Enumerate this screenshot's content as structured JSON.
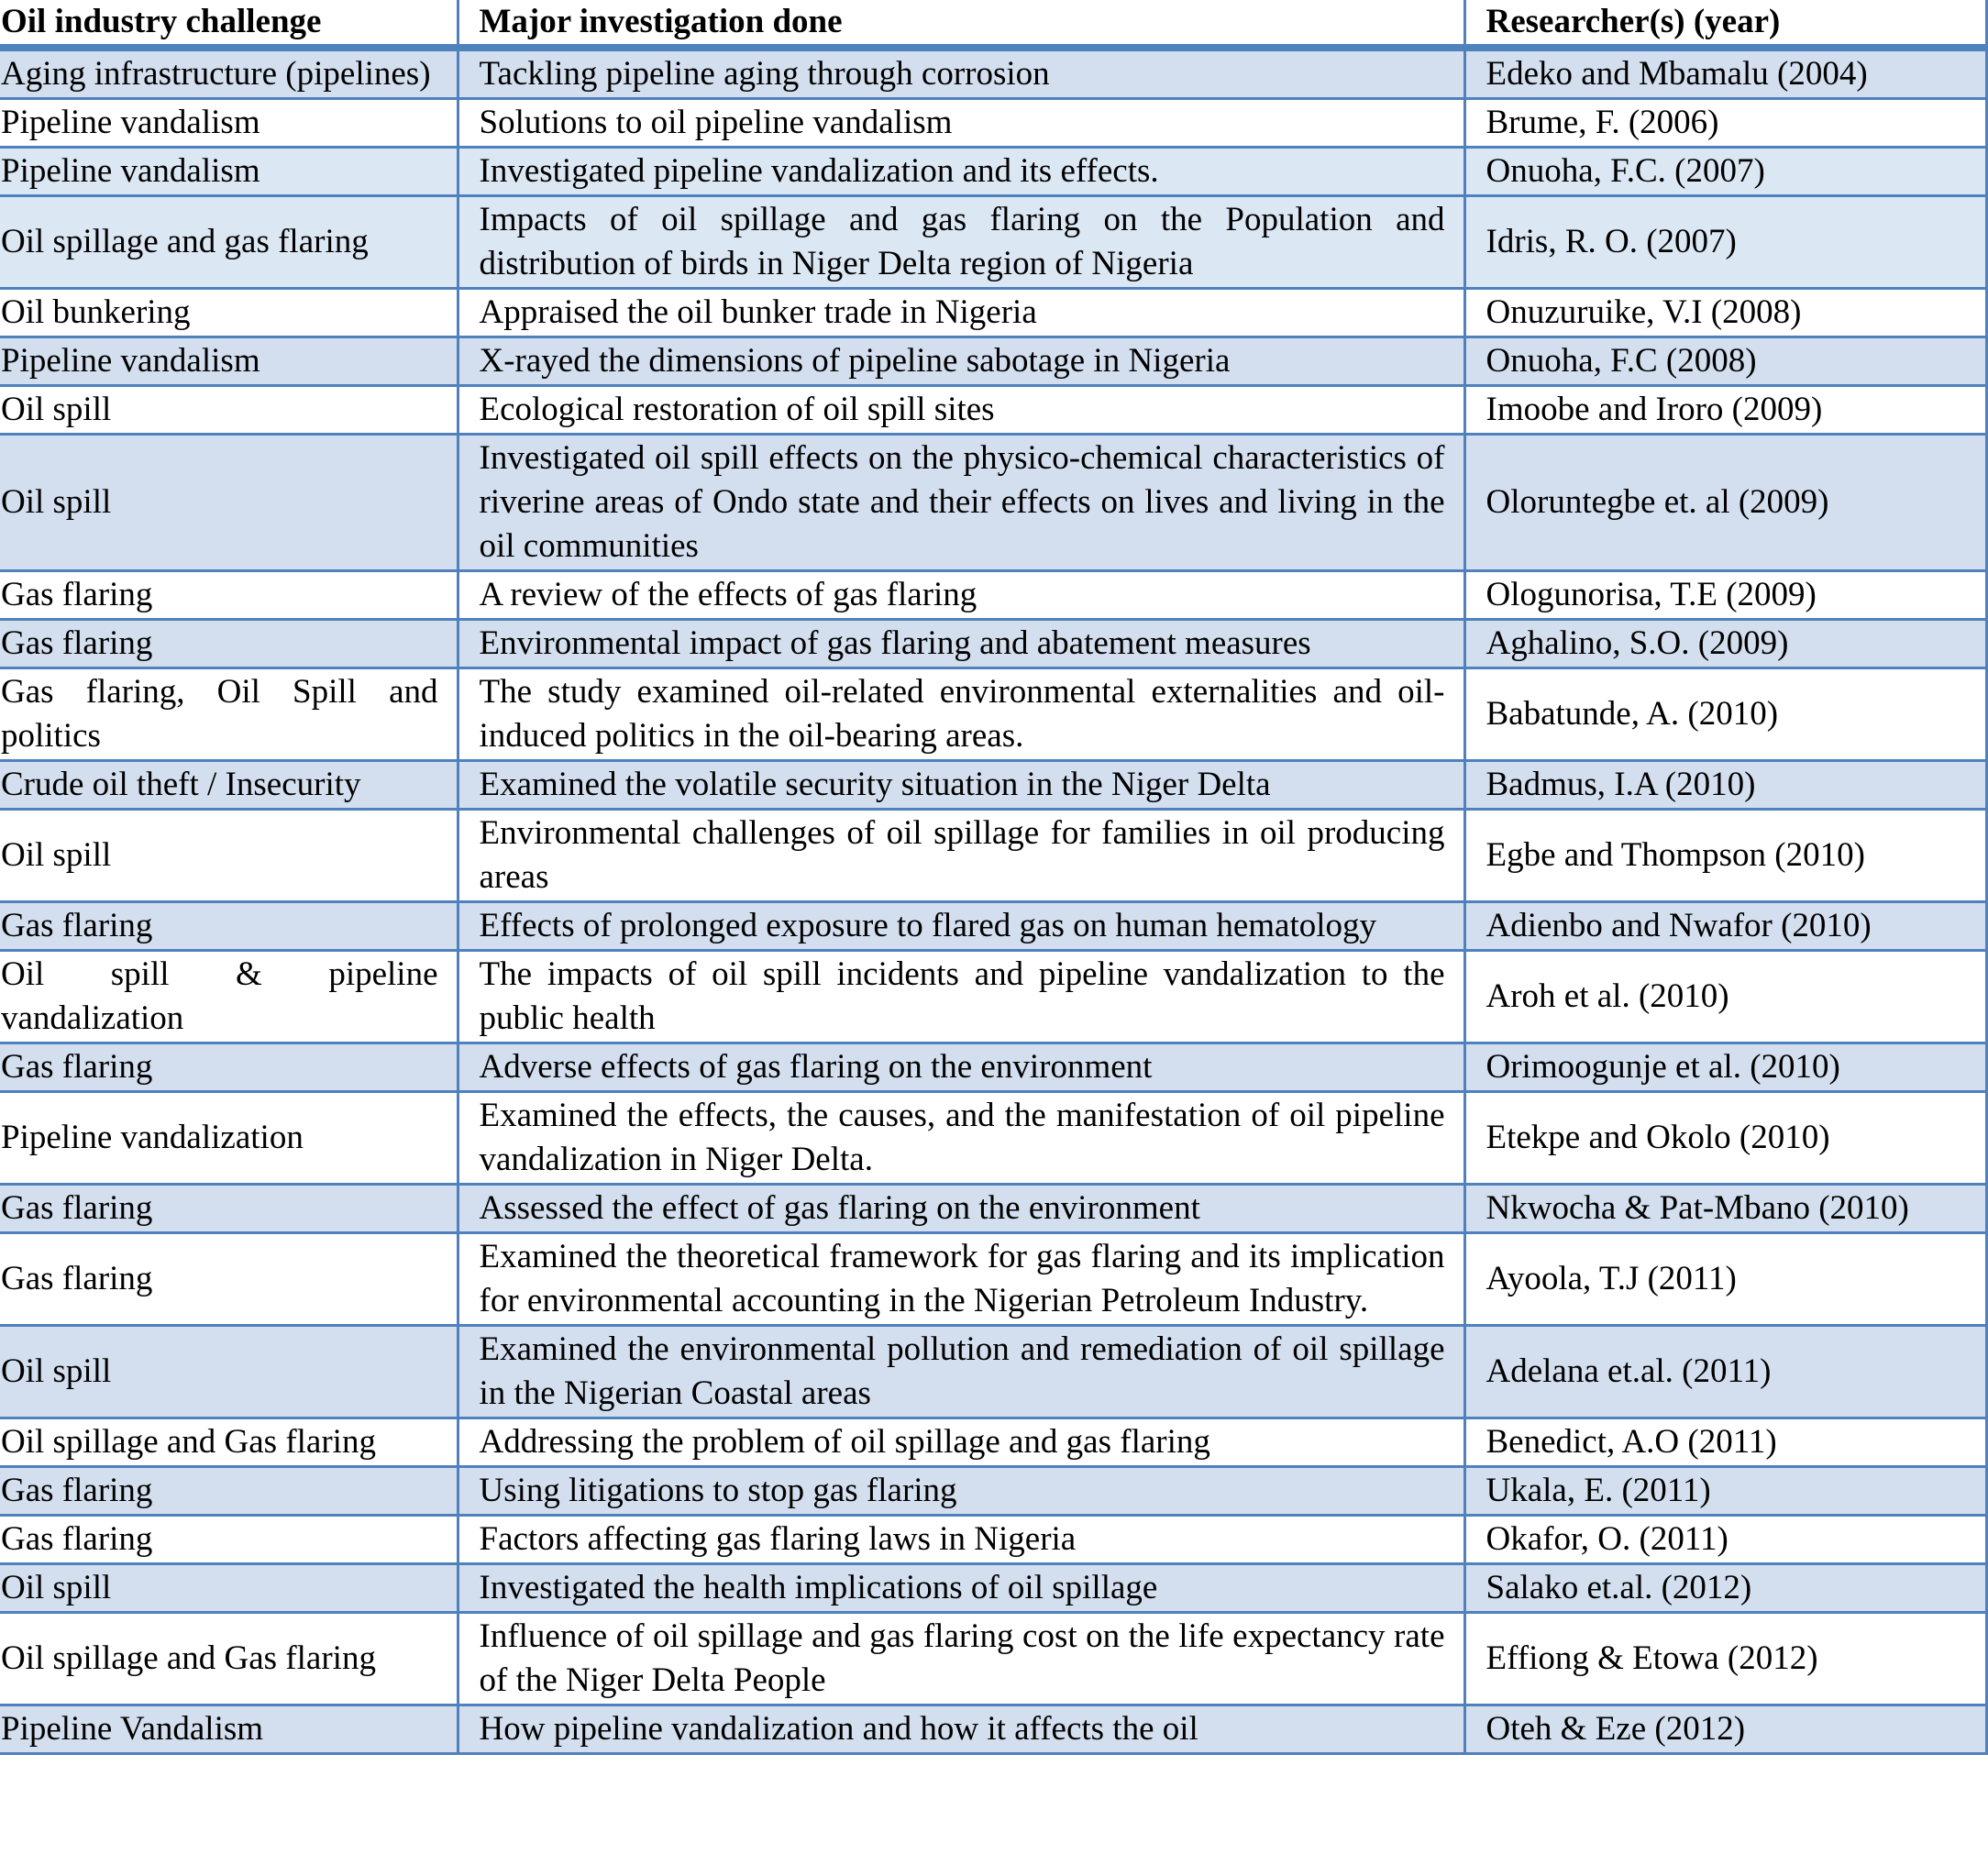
{
  "header": {
    "challenge": "Oil industry challenge",
    "investigation": "Major investigation done",
    "researcher": "Researcher(s) (year)"
  },
  "border_color": "#4f81bd",
  "rows": [
    {
      "c": "Aging infrastructure (pipelines)",
      "i": "Tackling pipeline aging through corrosion",
      "r": "Edeko and Mbamalu (2004)",
      "fill": "shade"
    },
    {
      "c": "Pipeline vandalism",
      "i": "Solutions to oil pipeline vandalism",
      "r": "Brume, F. (2006)",
      "fill": "white"
    },
    {
      "c": "Pipeline vandalism",
      "i": "Investigated pipeline vandalization and its effects.",
      "r": "Onuoha, F.C. (2007)",
      "fill": "light"
    },
    {
      "c": "Oil spillage and gas flaring",
      "i": "Impacts of oil spillage and gas flaring on the Population and distribution of birds in Niger Delta region of Nigeria",
      "r": "Idris, R. O. (2007)",
      "fill": "light"
    },
    {
      "c": "Oil bunkering",
      "i": "Appraised the oil bunker trade in Nigeria",
      "r": "Onuzuruike, V.I (2008)",
      "fill": "white"
    },
    {
      "c": "Pipeline vandalism",
      "i": "X-rayed the dimensions of pipeline sabotage in Nigeria",
      "r": "Onuoha, F.C (2008)",
      "fill": "shade"
    },
    {
      "c": "Oil spill",
      "i": "Ecological restoration of oil spill sites",
      "r": "Imoobe and Iroro (2009)",
      "fill": "white"
    },
    {
      "c": "Oil spill",
      "i": "Investigated oil spill effects on the physico-chemical characteristics of  riverine areas of Ondo state and their effects on lives and living in the oil communities",
      "r": "Oloruntegbe et. al (2009)",
      "fill": "shade"
    },
    {
      "c": "Gas flaring",
      "i": "A review of the effects of gas flaring",
      "r": "Ologunorisa, T.E (2009)",
      "fill": "white"
    },
    {
      "c": "Gas flaring",
      "i": "Environmental impact of gas flaring and abatement measures",
      "r": "Aghalino, S.O. (2009)",
      "fill": "shade"
    },
    {
      "c": "Gas flaring, Oil Spill and politics",
      "i": "The study examined oil-related environmental externalities and oil-induced politics in the oil-bearing areas.",
      "r": "Babatunde, A. (2010)",
      "fill": "white"
    },
    {
      "c": "Crude oil theft / Insecurity",
      "i": "Examined the volatile security situation in the Niger Delta",
      "r": "Badmus, I.A (2010)",
      "fill": "shade"
    },
    {
      "c": "Oil spill",
      "i": "Environmental challenges of oil spillage for families in oil producing areas",
      "r": "Egbe and Thompson (2010)",
      "fill": "white"
    },
    {
      "c": "Gas flaring",
      "i": "Effects of prolonged exposure to flared gas on human hematology",
      "r": "Adienbo and Nwafor (2010)",
      "fill": "shade"
    },
    {
      "c": "Oil spill & pipeline vandalization",
      "i": "The impacts of oil spill incidents and pipeline vandalization to the public health",
      "r": "Aroh et al. (2010)",
      "fill": "white"
    },
    {
      "c": "Gas flaring",
      "i": "Adverse effects of gas flaring on the environment",
      "r": "Orimoogunje et al. (2010)",
      "fill": "shade"
    },
    {
      "c": "Pipeline vandalization",
      "i": "Examined the effects, the causes, and the manifestation of oil pipeline vandalization in Niger Delta.",
      "r": "Etekpe and  Okolo (2010)",
      "fill": "white"
    },
    {
      "c": "Gas flaring",
      "i": "Assessed the effect of gas flaring on the environment",
      "r": "Nkwocha & Pat-Mbano (2010)",
      "fill": "shade"
    },
    {
      "c": "Gas flaring",
      "i": "Examined the theoretical framework for gas flaring and its implication for environmental accounting in the Nigerian Petroleum Industry.",
      "r": "Ayoola, T.J (2011)",
      "fill": "white"
    },
    {
      "c": "Oil spill",
      "i": "Examined the environmental pollution and remediation of oil spillage in the Nigerian Coastal areas",
      "r": "Adelana et.al. (2011)",
      "fill": "shade"
    },
    {
      "c": "Oil spillage and Gas flaring",
      "i": "Addressing the problem of oil spillage and gas flaring",
      "r": "Benedict, A.O (2011)",
      "fill": "white"
    },
    {
      "c": "Gas flaring",
      "i": "Using litigations to stop gas flaring",
      "r": "Ukala, E. (2011)",
      "fill": "shade"
    },
    {
      "c": "Gas flaring",
      "i": "Factors affecting gas flaring laws in Nigeria",
      "r": "Okafor, O. (2011)",
      "fill": "white"
    },
    {
      "c": "Oil spill",
      "i": "Investigated the health implications of oil spillage",
      "r": "Salako et.al. (2012)",
      "fill": "shade"
    },
    {
      "c": "Oil spillage and Gas flaring",
      "i": "Influence of oil spillage and gas flaring cost on the life expectancy rate of the Niger Delta People",
      "r": "Effiong & Etowa (2012)",
      "fill": "white"
    },
    {
      "c": "Pipeline Vandalism",
      "i": "How pipeline vandalization and how it affects the oil",
      "r": "Oteh & Eze (2012)",
      "fill": "shade"
    }
  ]
}
